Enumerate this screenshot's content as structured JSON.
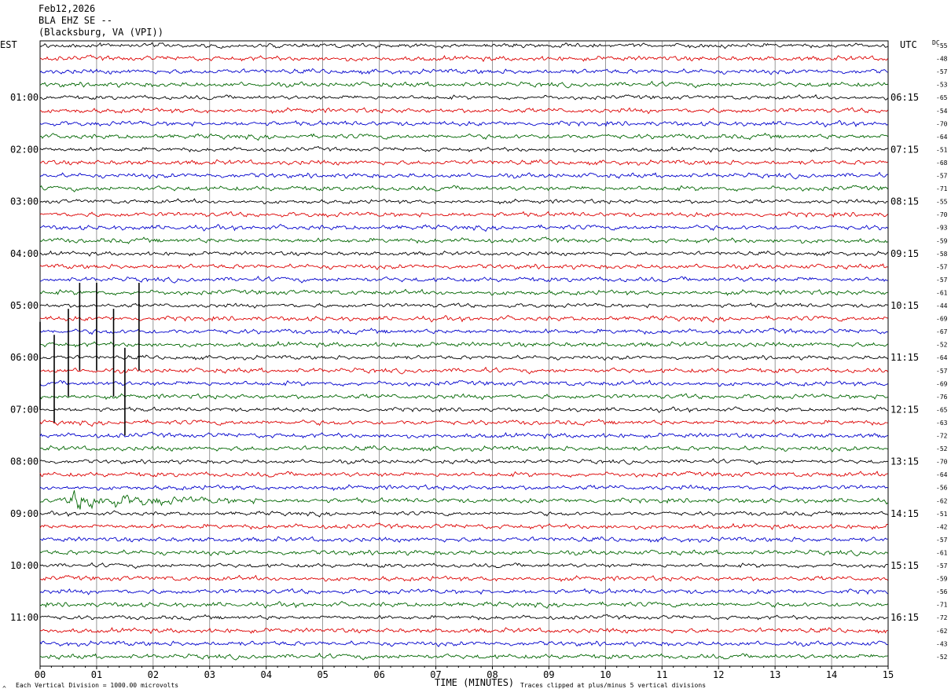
{
  "header": {
    "date": "Feb12,2026",
    "station": "BLA EHZ SE --",
    "location": "(Blacksburg, VA (VPI))"
  },
  "left_zone_label": "EST",
  "right_zone_label": "UTC",
  "dc_label": "DC",
  "footer": {
    "division_note": "Each Vertical Division = 1000.00 microvolts",
    "axis_title": "TIME (MINUTES)",
    "clip_note": "Traces clipped at plus/minus 5 vertical divisions",
    "corner_mark": "^"
  },
  "colors": {
    "trace_cycle": [
      "#000000",
      "#dd0000",
      "#0000cc",
      "#006600"
    ],
    "grid": "#000000"
  },
  "chart_data": {
    "type": "line",
    "x_ticks": [
      "00",
      "01",
      "02",
      "03",
      "04",
      "05",
      "06",
      "07",
      "08",
      "09",
      "10",
      "11",
      "12",
      "13",
      "14",
      "15"
    ],
    "xlim": [
      0,
      15
    ],
    "rows": 48,
    "hour_labels_left": [
      "01:00",
      "02:00",
      "03:00",
      "04:00",
      "05:00",
      "06:00",
      "07:00",
      "08:00",
      "09:00",
      "10:00",
      "11:00"
    ],
    "hour_labels_right": [
      "06:15",
      "07:15",
      "08:15",
      "09:15",
      "10:15",
      "11:15",
      "12:15",
      "13:15",
      "14:15",
      "15:15",
      "16:15"
    ],
    "hour_label_rows": [
      4,
      8,
      12,
      16,
      20,
      24,
      28,
      32,
      36,
      40,
      44
    ],
    "dc_values": [
      -55,
      -48,
      -57,
      -53,
      -65,
      -54,
      -70,
      -64,
      -51,
      -68,
      -57,
      -71,
      -55,
      -70,
      -93,
      -59,
      -58,
      -57,
      -57,
      -61,
      -44,
      -69,
      -67,
      -52,
      -64,
      -57,
      -69,
      -76,
      -65,
      -63,
      -72,
      -52,
      -70,
      -64,
      -56,
      -62,
      -51,
      -42,
      -57,
      -61,
      -57,
      -59,
      -56,
      -71,
      -72,
      -62,
      -43,
      -52
    ],
    "events": [
      {
        "row": 20,
        "minute": 0.7,
        "type": "spike"
      },
      {
        "row": 20,
        "minute": 1.0,
        "type": "spike"
      },
      {
        "row": 20,
        "minute": 1.75,
        "type": "spike"
      },
      {
        "row": 22,
        "minute": 0.5,
        "type": "spike"
      },
      {
        "row": 22,
        "minute": 1.3,
        "type": "spike"
      },
      {
        "row": 23,
        "minute": 0.0,
        "type": "spike"
      },
      {
        "row": 24,
        "minute": 0.25,
        "type": "spike"
      },
      {
        "row": 25,
        "minute": 1.5,
        "type": "spike"
      },
      {
        "row": 35,
        "minute": 0.45,
        "type": "quake",
        "duration_min": 3.5
      }
    ]
  }
}
